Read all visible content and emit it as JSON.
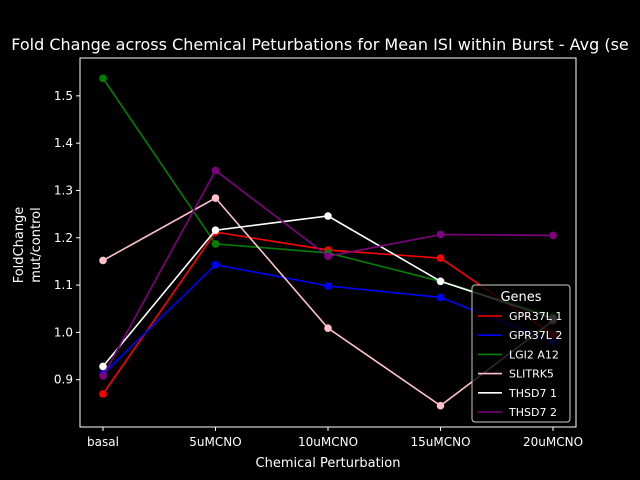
{
  "chart_data": {
    "type": "line",
    "title": "Fold Change across Chemical Peturbations for Mean ISI within Burst - Avg (se",
    "xlabel": "Chemical Perturbation",
    "ylabel_lines": [
      "FoldChange",
      "mut/control"
    ],
    "categories": [
      "basal",
      "5uMCNO",
      "10uMCNO",
      "15uMCNO",
      "20uMCNO"
    ],
    "ylim": [
      0.8,
      1.58
    ],
    "yticks": [
      0.9,
      1.0,
      1.1,
      1.2,
      1.3,
      1.4,
      1.5
    ],
    "ytick_labels": [
      "0.9",
      "1.0",
      "1.1",
      "1.2",
      "1.3",
      "1.4",
      "1.5"
    ],
    "grid": false,
    "legend": {
      "title": "Genes",
      "placement": "lower-right"
    },
    "series": [
      {
        "name": "GPR37L 1",
        "color": "#ff0000",
        "values": [
          0.87,
          1.212,
          1.174,
          1.157,
          0.995
        ]
      },
      {
        "name": "GPR37L 2",
        "color": "#0000ff",
        "values": [
          0.912,
          1.143,
          1.098,
          1.074,
          0.98
        ]
      },
      {
        "name": "LGI2 A12",
        "color": "#008000",
        "values": [
          1.537,
          1.187,
          1.168,
          1.108,
          1.035
        ]
      },
      {
        "name": "SLITRK5",
        "color": "#ffc0cb",
        "values": [
          1.152,
          1.284,
          1.009,
          0.845,
          1.025
        ]
      },
      {
        "name": "THSD7 1",
        "color": "#ffffff",
        "values": [
          0.928,
          1.216,
          1.246,
          1.108,
          1.03
        ]
      },
      {
        "name": "THSD7 2",
        "color": "#800080",
        "values": [
          0.908,
          1.342,
          1.161,
          1.207,
          1.205
        ]
      }
    ]
  }
}
